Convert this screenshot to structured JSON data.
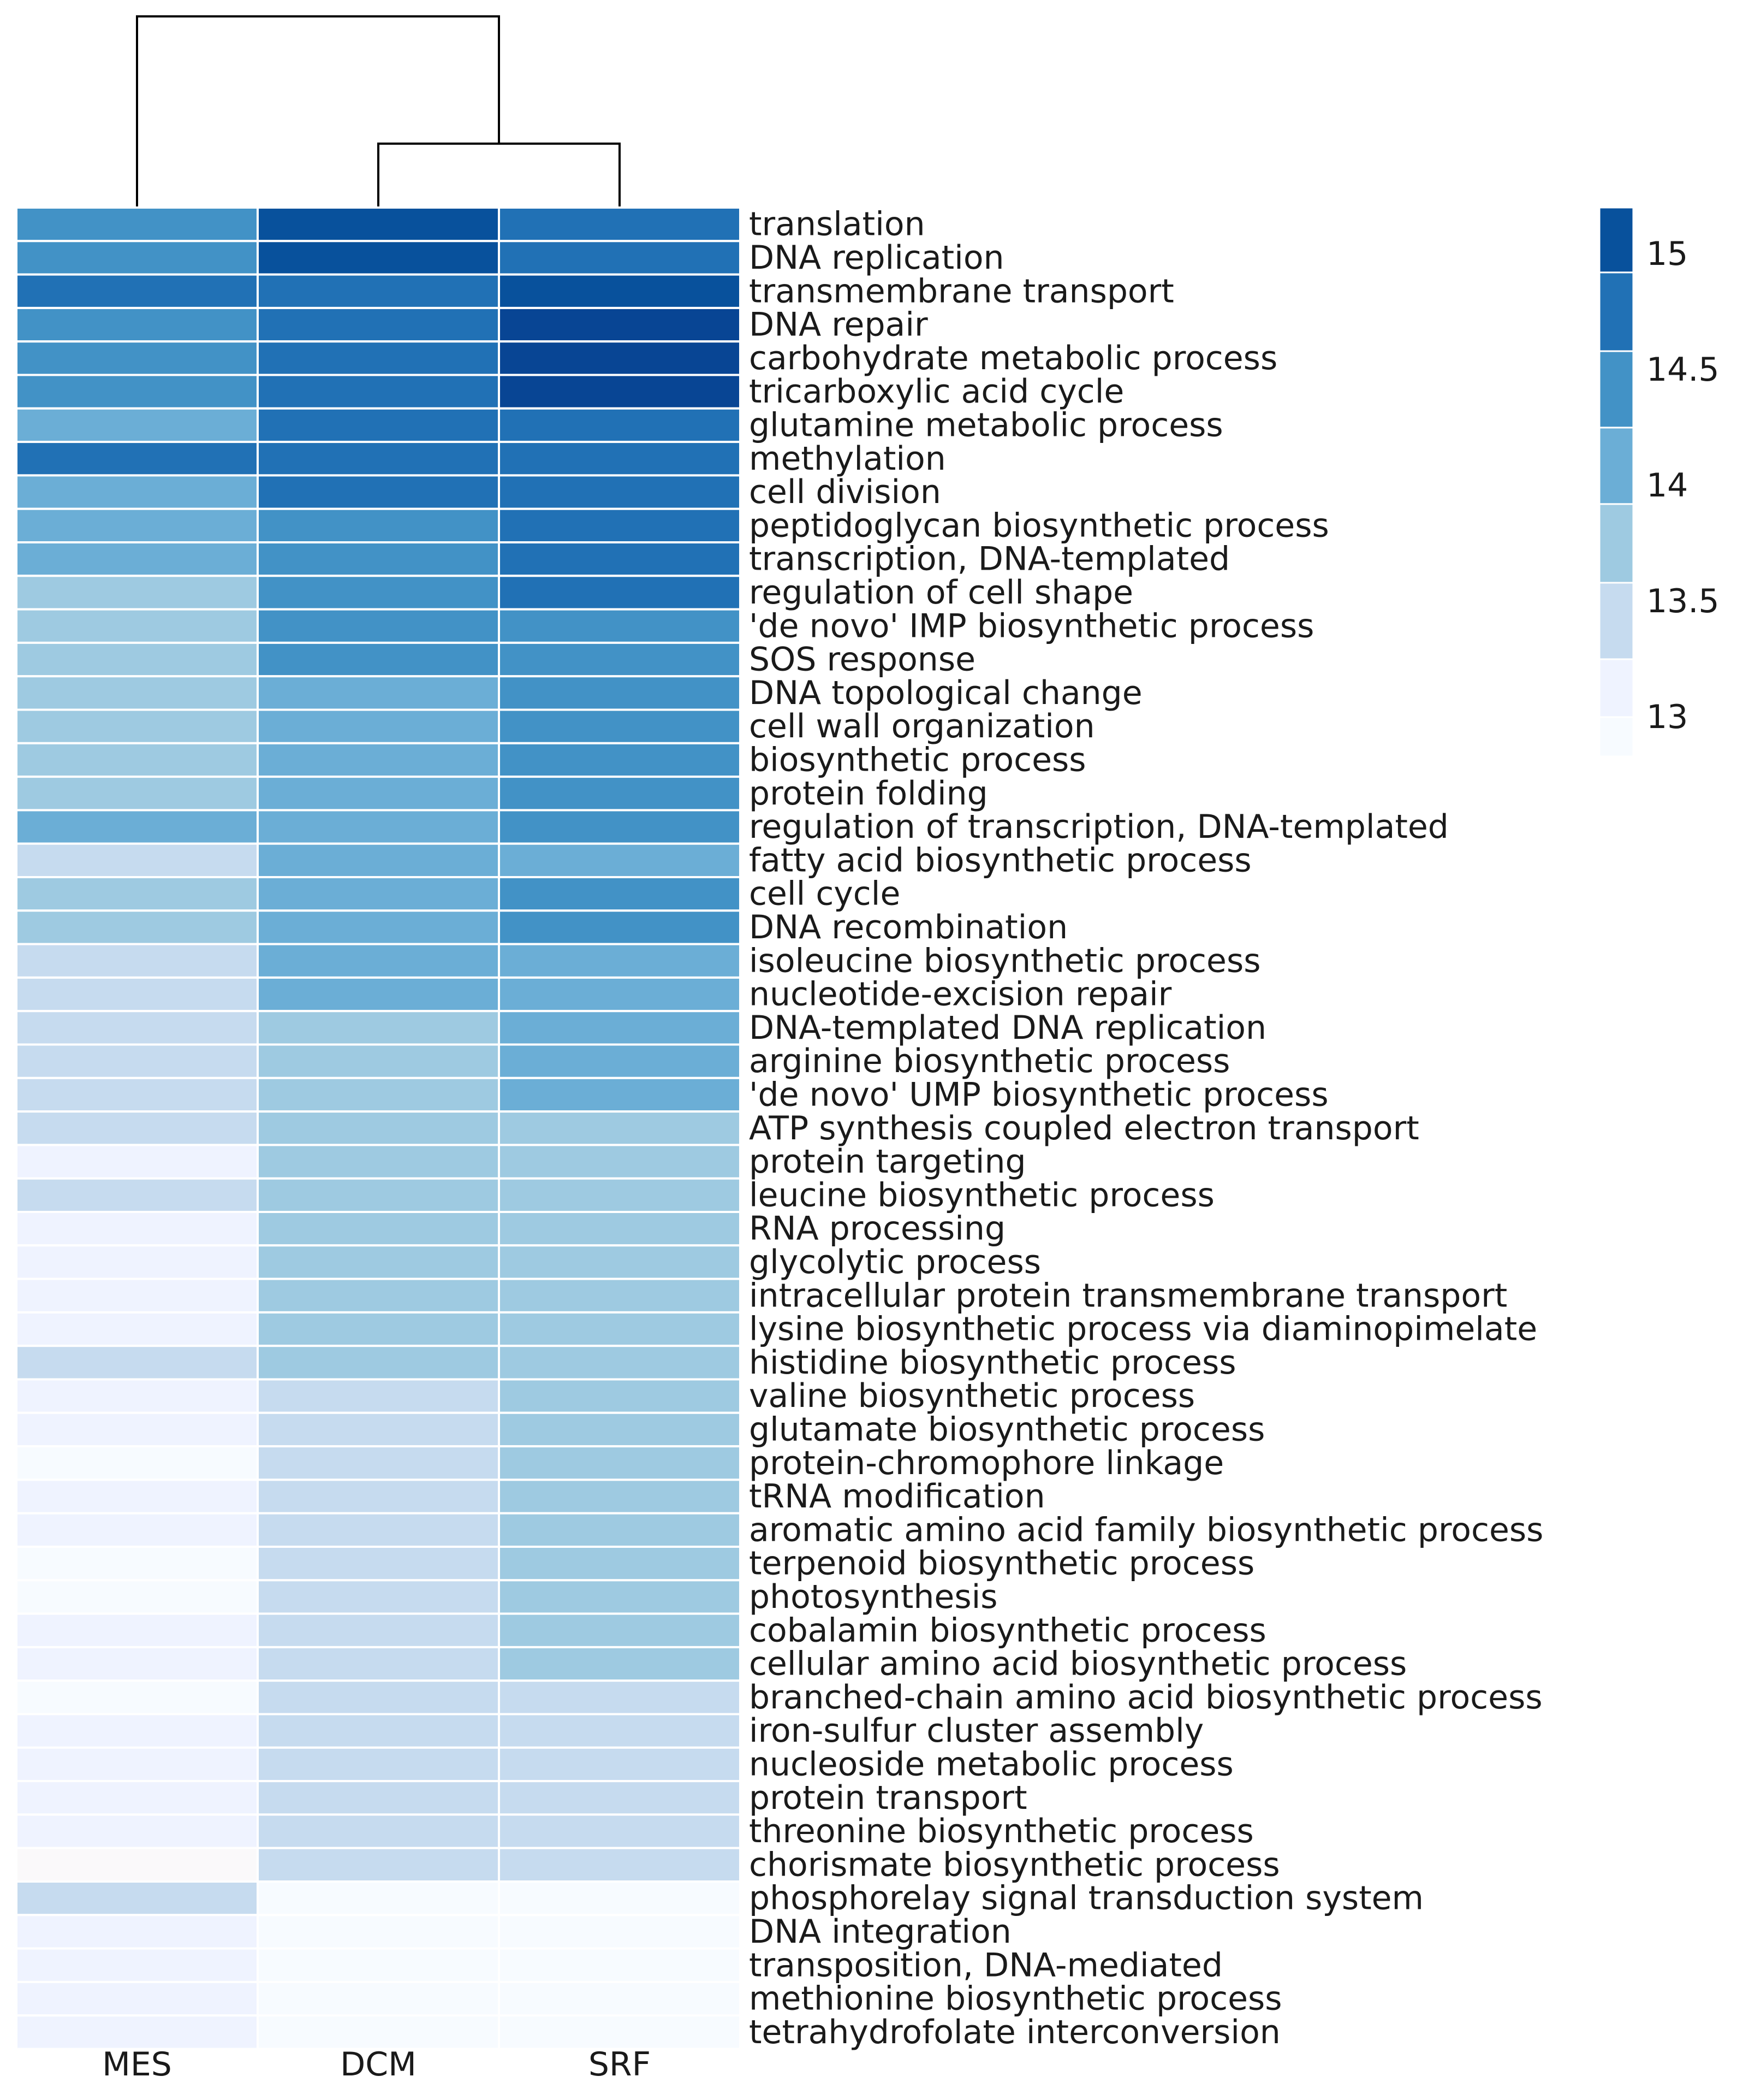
{
  "chart_data": {
    "type": "heatmap",
    "title": "",
    "columns": [
      "MES",
      "DCM",
      "SRF"
    ],
    "rows": [
      {
        "label": "translation",
        "values": [
          14.5,
          15.1,
          14.9
        ]
      },
      {
        "label": "DNA replication",
        "values": [
          14.5,
          15.1,
          14.9
        ]
      },
      {
        "label": "transmembrane transport",
        "values": [
          14.7,
          14.7,
          15.1
        ]
      },
      {
        "label": "DNA repair",
        "values": [
          14.5,
          14.7,
          15.2
        ]
      },
      {
        "label": "carbohydrate metabolic process",
        "values": [
          14.5,
          14.7,
          15.2
        ]
      },
      {
        "label": "tricarboxylic acid cycle",
        "values": [
          14.5,
          14.7,
          15.2
        ]
      },
      {
        "label": "glutamine metabolic process",
        "values": [
          14.2,
          14.7,
          14.7
        ]
      },
      {
        "label": "methylation",
        "values": [
          14.7,
          14.7,
          14.7
        ]
      },
      {
        "label": "cell division",
        "values": [
          14.2,
          14.7,
          14.7
        ]
      },
      {
        "label": "peptidoglycan biosynthetic process",
        "values": [
          14.2,
          14.5,
          14.7
        ]
      },
      {
        "label": "transcription, DNA-templated",
        "values": [
          14.2,
          14.5,
          14.7
        ]
      },
      {
        "label": "regulation of cell shape",
        "values": [
          13.8,
          14.5,
          14.7
        ]
      },
      {
        "label": "'de novo' IMP biosynthetic process",
        "values": [
          13.8,
          14.5,
          14.5
        ]
      },
      {
        "label": "SOS response",
        "values": [
          13.8,
          14.5,
          14.5
        ]
      },
      {
        "label": "DNA topological change",
        "values": [
          13.8,
          14.2,
          14.5
        ]
      },
      {
        "label": "cell wall organization",
        "values": [
          13.8,
          14.2,
          14.5
        ]
      },
      {
        "label": "biosynthetic process",
        "values": [
          13.8,
          14.2,
          14.5
        ]
      },
      {
        "label": "protein folding",
        "values": [
          13.8,
          14.2,
          14.5
        ]
      },
      {
        "label": "regulation of transcription, DNA-templated",
        "values": [
          14.2,
          14.2,
          14.5
        ]
      },
      {
        "label": "fatty acid biosynthetic process",
        "values": [
          13.4,
          14.2,
          14.2
        ]
      },
      {
        "label": "cell cycle",
        "values": [
          13.8,
          14.2,
          14.5
        ]
      },
      {
        "label": "DNA recombination",
        "values": [
          13.8,
          14.2,
          14.5
        ]
      },
      {
        "label": "isoleucine biosynthetic process",
        "values": [
          13.4,
          14.2,
          14.2
        ]
      },
      {
        "label": "nucleotide-excision repair",
        "values": [
          13.4,
          14.2,
          14.2
        ]
      },
      {
        "label": "DNA-templated DNA replication",
        "values": [
          13.4,
          13.8,
          14.2
        ]
      },
      {
        "label": "arginine biosynthetic process",
        "values": [
          13.4,
          13.8,
          14.2
        ]
      },
      {
        "label": "'de novo' UMP biosynthetic process",
        "values": [
          13.4,
          13.8,
          14.2
        ]
      },
      {
        "label": "ATP synthesis coupled electron transport",
        "values": [
          13.4,
          13.8,
          13.8
        ]
      },
      {
        "label": "protein targeting",
        "values": [
          13.1,
          13.8,
          13.8
        ]
      },
      {
        "label": "leucine biosynthetic process",
        "values": [
          13.4,
          13.8,
          13.8
        ]
      },
      {
        "label": "RNA processing",
        "values": [
          13.1,
          13.8,
          13.8
        ]
      },
      {
        "label": "glycolytic process",
        "values": [
          13.1,
          13.8,
          13.8
        ]
      },
      {
        "label": "intracellular protein transmembrane transport",
        "values": [
          13.1,
          13.8,
          13.8
        ]
      },
      {
        "label": "lysine biosynthetic process via diaminopimelate",
        "values": [
          13.1,
          13.8,
          13.8
        ]
      },
      {
        "label": "histidine biosynthetic process",
        "values": [
          13.4,
          13.8,
          13.8
        ]
      },
      {
        "label": "valine biosynthetic process",
        "values": [
          13.1,
          13.4,
          13.8
        ]
      },
      {
        "label": "glutamate biosynthetic process",
        "values": [
          13.1,
          13.4,
          13.8
        ]
      },
      {
        "label": "protein-chromophore linkage",
        "values": [
          12.9,
          13.4,
          13.8
        ]
      },
      {
        "label": "tRNA modification",
        "values": [
          13.1,
          13.4,
          13.8
        ]
      },
      {
        "label": "aromatic amino acid family biosynthetic process",
        "values": [
          13.1,
          13.4,
          13.8
        ]
      },
      {
        "label": "terpenoid biosynthetic process",
        "values": [
          12.9,
          13.4,
          13.8
        ]
      },
      {
        "label": "photosynthesis",
        "values": [
          12.9,
          13.4,
          13.8
        ]
      },
      {
        "label": "cobalamin biosynthetic process",
        "values": [
          13.1,
          13.4,
          13.8
        ]
      },
      {
        "label": "cellular amino acid biosynthetic process",
        "values": [
          13.1,
          13.4,
          13.8
        ]
      },
      {
        "label": "branched-chain amino acid biosynthetic process",
        "values": [
          12.9,
          13.4,
          13.4
        ]
      },
      {
        "label": "iron-sulfur cluster assembly",
        "values": [
          13.1,
          13.4,
          13.4
        ]
      },
      {
        "label": "nucleoside metabolic process",
        "values": [
          13.1,
          13.4,
          13.4
        ]
      },
      {
        "label": "protein transport",
        "values": [
          13.1,
          13.4,
          13.4
        ]
      },
      {
        "label": "threonine biosynthetic process",
        "values": [
          13.1,
          13.4,
          13.4
        ]
      },
      {
        "label": "chorismate biosynthetic process",
        "values": [
          12.85,
          13.4,
          13.4
        ]
      },
      {
        "label": "phosphorelay signal transduction system",
        "values": [
          13.4,
          12.9,
          12.9
        ]
      },
      {
        "label": "DNA integration",
        "values": [
          13.1,
          12.9,
          12.9
        ]
      },
      {
        "label": "transposition, DNA-mediated",
        "values": [
          13.1,
          12.9,
          12.9
        ]
      },
      {
        "label": "methionine biosynthetic process",
        "values": [
          13.1,
          12.9,
          12.9
        ]
      },
      {
        "label": "tetrahydrofolate interconversion",
        "values": [
          13.1,
          12.9,
          12.9
        ]
      }
    ],
    "dendrogram": {
      "merges": [
        {
          "left": "DCM",
          "right": "SRF",
          "height": 1
        },
        {
          "left": "MES",
          "right": "DCM+SRF",
          "height": 2
        }
      ]
    },
    "legend": {
      "position": "right",
      "ticks": [
        15,
        14.5,
        14,
        13.5,
        13
      ],
      "tick_labels": [
        "15",
        "14.5",
        "14",
        "13.5",
        "13"
      ],
      "range": [
        12.83,
        15.2
      ],
      "bins": [
        {
          "min": 12.83,
          "max": 13.0,
          "color": "#f7fbff"
        },
        {
          "min": 13.0,
          "max": 13.25,
          "color": "#eff3ff"
        },
        {
          "min": 13.25,
          "max": 13.58,
          "color": "#c6dbef"
        },
        {
          "min": 13.58,
          "max": 13.92,
          "color": "#9ecae1"
        },
        {
          "min": 13.92,
          "max": 14.25,
          "color": "#6baed6"
        },
        {
          "min": 14.25,
          "max": 14.58,
          "color": "#4292c6"
        },
        {
          "min": 14.58,
          "max": 14.92,
          "color": "#2171b5"
        },
        {
          "min": 14.92,
          "max": 15.2,
          "color": "#08519c"
        }
      ]
    },
    "colors": {
      "lowest": "#faf9fa",
      "highest": "#084594"
    }
  }
}
